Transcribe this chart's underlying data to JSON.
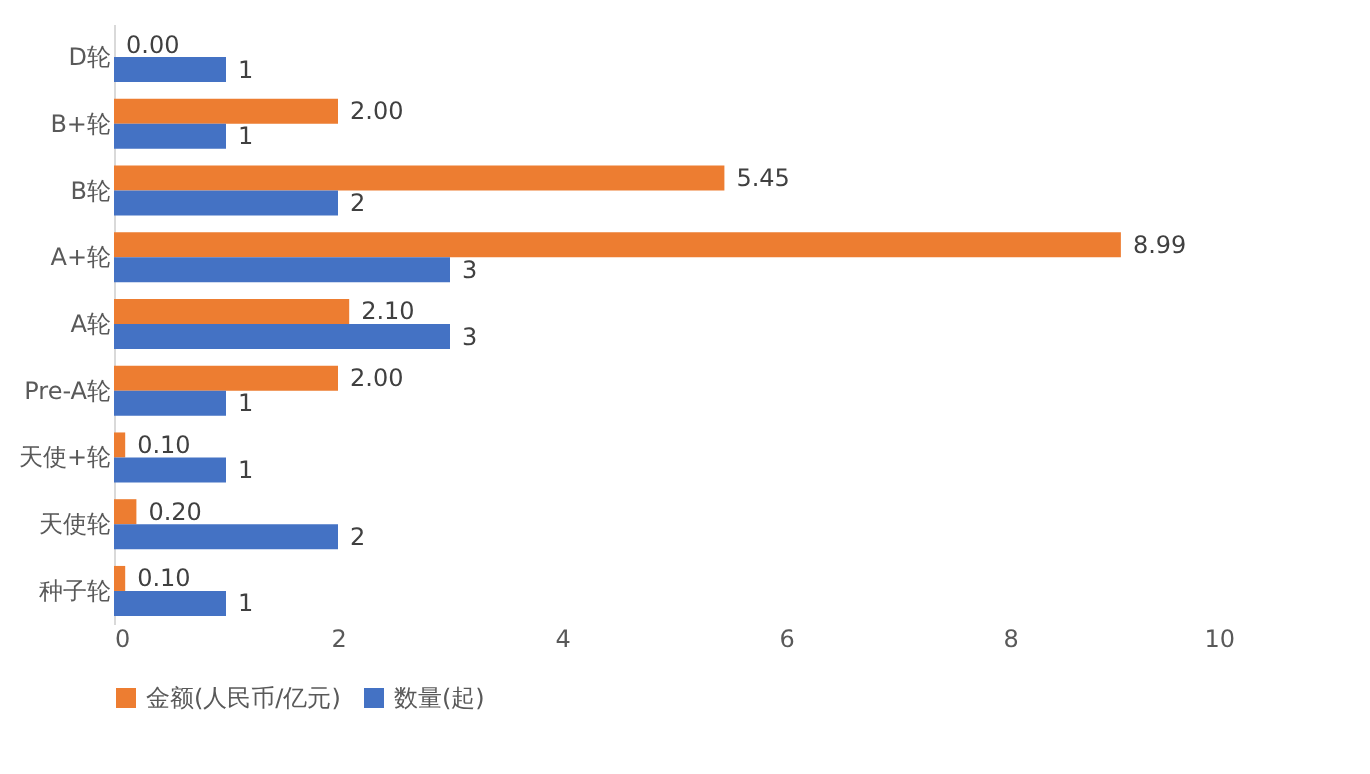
{
  "chart_data": {
    "type": "bar",
    "orientation": "horizontal",
    "categories": [
      "D轮",
      "B+轮",
      "B轮",
      "A+轮",
      "A轮",
      "Pre-A轮",
      "天使+轮",
      "天使轮",
      "种子轮"
    ],
    "series": [
      {
        "name": "金额(人民币/亿元)",
        "color": "#ed7d31",
        "values": [
          0.0,
          2.0,
          5.45,
          8.99,
          2.1,
          2.0,
          0.1,
          0.2,
          0.1
        ],
        "value_labels": [
          "0.00",
          "2.00",
          "5.45",
          "8.99",
          "2.10",
          "2.00",
          "0.10",
          "0.20",
          "0.10"
        ]
      },
      {
        "name": "数量(起)",
        "color": "#4472c4",
        "values": [
          1,
          1,
          2,
          3,
          3,
          1,
          1,
          2,
          1
        ],
        "value_labels": [
          "1",
          "1",
          "2",
          "3",
          "3",
          "1",
          "1",
          "2",
          "1"
        ]
      }
    ],
    "xlim": [
      0,
      10
    ],
    "xticks": [
      0,
      2,
      4,
      6,
      8,
      10
    ],
    "grid": false,
    "legend": "bottom"
  }
}
